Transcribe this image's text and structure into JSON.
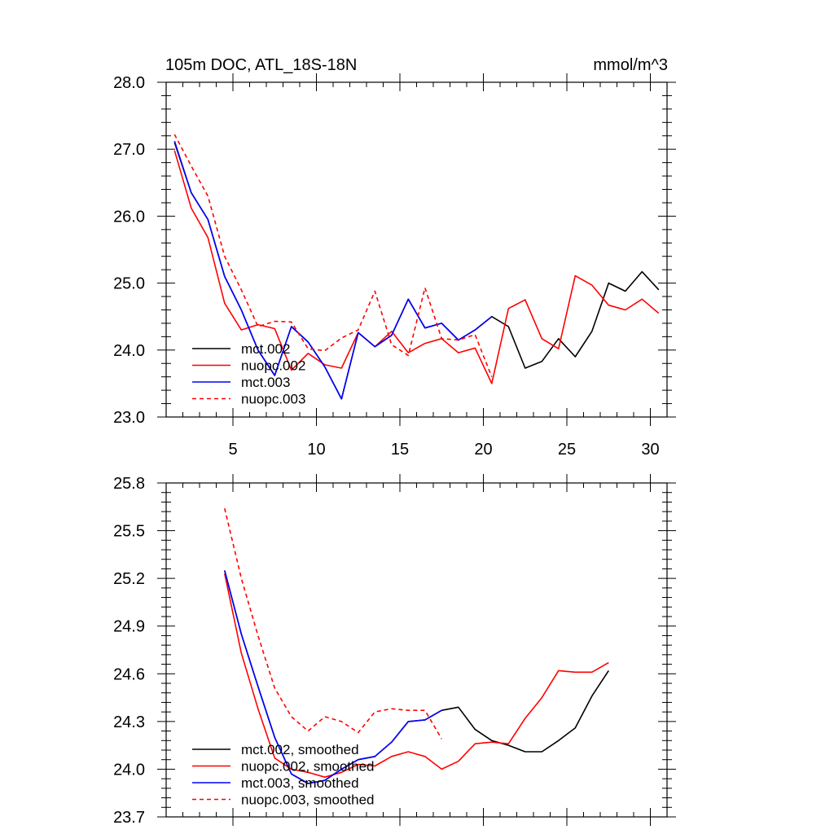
{
  "figure": {
    "title_left": "105m DOC, ATL_18S-18N",
    "title_right": "mmol/m^3"
  },
  "styles": {
    "mct.002": {
      "color": "#000000",
      "dash": ""
    },
    "nuopc.002": {
      "color": "#ff0000",
      "dash": ""
    },
    "mct.003": {
      "color": "#0000ff",
      "dash": ""
    },
    "nuopc.003": {
      "color": "#ff0000",
      "dash": "5,4"
    }
  },
  "chart_data": [
    {
      "type": "line",
      "title": "105m DOC, ATL_18S-18N",
      "units": "mmol/m^3",
      "xlim": [
        1,
        31
      ],
      "ylim": [
        23.0,
        28.0
      ],
      "xticks": [
        5,
        10,
        15,
        20,
        25,
        30
      ],
      "yticks": [
        "23.0",
        "24.0",
        "25.0",
        "26.0",
        "27.0",
        "28.0"
      ],
      "legend_position": "bottom-left",
      "series": [
        {
          "name": "mct.002",
          "style": "mct.002",
          "x": [
            1.5,
            2.5,
            3.5,
            4.5,
            5.5,
            6.5,
            7.5,
            8.5,
            9.5,
            10.5,
            11.5,
            12.5,
            13.5,
            14.5,
            15.5,
            16.5,
            17.5,
            18.5,
            19.5,
            20.5,
            21.5,
            22.5,
            23.5,
            24.5,
            25.5,
            26.5,
            27.5,
            28.5,
            29.5,
            30.5
          ],
          "y": [
            27.1,
            26.35,
            25.95,
            25.1,
            24.6,
            24.0,
            23.62,
            24.35,
            24.12,
            23.75,
            23.27,
            24.26,
            24.05,
            24.22,
            24.76,
            24.33,
            24.4,
            24.15,
            24.3,
            24.5,
            24.35,
            23.73,
            23.83,
            24.17,
            23.9,
            24.28,
            25.0,
            24.88,
            25.17,
            24.9
          ]
        },
        {
          "name": "nuopc.002",
          "style": "nuopc.002",
          "x": [
            1.5,
            2.5,
            3.5,
            4.5,
            5.5,
            6.5,
            7.5,
            8.5,
            9.5,
            10.5,
            11.5,
            12.5,
            13.5,
            14.5,
            15.5,
            16.5,
            17.5,
            18.5,
            19.5,
            20.5,
            21.5,
            22.5,
            23.5,
            24.5,
            25.5,
            26.5,
            27.5,
            28.5,
            29.5,
            30.5
          ],
          "y": [
            26.98,
            26.12,
            25.68,
            24.7,
            24.3,
            24.38,
            24.32,
            23.7,
            23.95,
            23.78,
            23.73,
            24.26,
            24.05,
            24.28,
            23.96,
            24.1,
            24.17,
            23.96,
            24.03,
            23.5,
            24.62,
            24.75,
            24.17,
            24.02,
            25.11,
            24.97,
            24.67,
            24.6,
            24.76,
            24.55
          ]
        },
        {
          "name": "mct.003",
          "style": "mct.003",
          "x": [
            1.5,
            2.5,
            3.5,
            4.5,
            5.5,
            6.5,
            7.5,
            8.5,
            9.5,
            10.5,
            11.5,
            12.5,
            13.5,
            14.5,
            15.5,
            16.5,
            17.5,
            18.5,
            19.5,
            20.5
          ],
          "y": [
            27.12,
            26.35,
            25.95,
            25.1,
            24.6,
            24.0,
            23.62,
            24.35,
            24.12,
            23.75,
            23.27,
            24.26,
            24.05,
            24.22,
            24.76,
            24.33,
            24.4,
            24.15,
            24.3,
            24.5
          ]
        },
        {
          "name": "nuopc.003",
          "style": "nuopc.003",
          "x": [
            1.5,
            2.5,
            3.5,
            4.5,
            5.5,
            6.5,
            7.5,
            8.5,
            9.5,
            10.5,
            11.5,
            12.5,
            13.5,
            14.5,
            15.5,
            16.5,
            17.5,
            18.5,
            19.5,
            20.5
          ],
          "y": [
            27.22,
            26.75,
            26.3,
            25.4,
            24.9,
            24.35,
            24.43,
            24.42,
            24.02,
            23.99,
            24.18,
            24.3,
            24.88,
            24.08,
            23.92,
            24.93,
            24.17,
            24.15,
            24.23,
            23.6
          ]
        }
      ]
    },
    {
      "type": "line",
      "xlim": [
        1,
        31
      ],
      "ylim": [
        23.7,
        25.8
      ],
      "xticks": [
        5,
        10,
        15,
        20,
        25,
        30
      ],
      "xtick_labels_shown": false,
      "yticks": [
        "23.7",
        "24.0",
        "24.3",
        "24.6",
        "24.9",
        "25.2",
        "25.5",
        "25.8"
      ],
      "legend_position": "bottom-left",
      "series": [
        {
          "name": "mct.002, smoothed",
          "style": "mct.002",
          "x": [
            4.5,
            5.5,
            6.5,
            7.5,
            8.5,
            9.5,
            10.5,
            11.5,
            12.5,
            13.5,
            14.5,
            15.5,
            16.5,
            17.5,
            18.5,
            19.5,
            20.5,
            21.5,
            22.5,
            23.5,
            24.5,
            25.5,
            26.5,
            27.5
          ],
          "y": [
            25.25,
            24.85,
            24.52,
            24.2,
            23.97,
            23.91,
            23.93,
            24.0,
            24.06,
            24.08,
            24.17,
            24.3,
            24.31,
            24.37,
            24.39,
            24.25,
            24.18,
            24.15,
            24.11,
            24.11,
            24.18,
            24.26,
            24.46,
            24.62
          ]
        },
        {
          "name": "nuopc.002, smoothed",
          "style": "nuopc.002",
          "x": [
            4.5,
            5.5,
            6.5,
            7.5,
            8.5,
            9.5,
            10.5,
            11.5,
            12.5,
            13.5,
            14.5,
            15.5,
            16.5,
            17.5,
            18.5,
            19.5,
            20.5,
            21.5,
            22.5,
            23.5,
            24.5,
            25.5,
            26.5,
            27.5
          ],
          "y": [
            25.23,
            24.73,
            24.38,
            24.07,
            24.0,
            23.98,
            23.95,
            23.98,
            24.03,
            24.02,
            24.08,
            24.11,
            24.08,
            24.0,
            24.05,
            24.16,
            24.17,
            24.16,
            24.32,
            24.45,
            24.62,
            24.61,
            24.61,
            24.67
          ]
        },
        {
          "name": "mct.003, smoothed",
          "style": "mct.003",
          "x": [
            4.5,
            5.5,
            6.5,
            7.5,
            8.5,
            9.5,
            10.5,
            11.5,
            12.5,
            13.5,
            14.5,
            15.5,
            16.5,
            17.5
          ],
          "y": [
            25.25,
            24.85,
            24.52,
            24.2,
            23.97,
            23.91,
            23.93,
            24.0,
            24.06,
            24.08,
            24.17,
            24.3,
            24.31,
            24.37
          ]
        },
        {
          "name": "nuopc.003, smoothed",
          "style": "nuopc.003",
          "x": [
            4.5,
            5.5,
            6.5,
            7.5,
            8.5,
            9.5,
            10.5,
            11.5,
            12.5,
            13.5,
            14.5,
            15.5,
            16.5,
            17.5
          ],
          "y": [
            25.64,
            25.2,
            24.84,
            24.51,
            24.33,
            24.24,
            24.33,
            24.3,
            24.23,
            24.36,
            24.38,
            24.37,
            24.37,
            24.19
          ]
        }
      ]
    }
  ]
}
